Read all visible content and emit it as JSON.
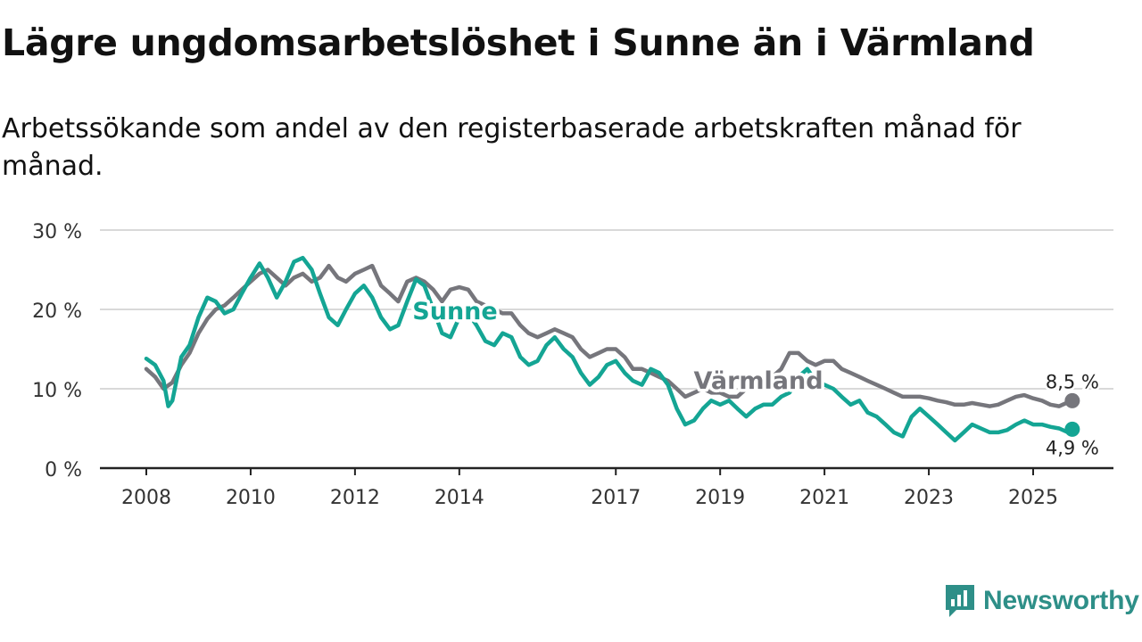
{
  "title": "Lägre ungdomsarbetslöshet i Sunne än i Värmland",
  "subtitle": "Arbetssökande som andel av den registerbaserade arbetskraften månad för månad.",
  "brand": "Newsworthy",
  "colors": {
    "sunne": "#14a594",
    "varmland": "#76767c",
    "grid": "#d9d9d9",
    "axis": "#222222",
    "brand": "#2e8f88"
  },
  "chart_data": {
    "type": "line",
    "x_unit": "year (decimal, monthly data)",
    "ylim": [
      0,
      30
    ],
    "xlim": [
      2007.8,
      2026.5
    ],
    "yticks": [
      {
        "value": 0,
        "label": "0 %"
      },
      {
        "value": 10,
        "label": "10 %"
      },
      {
        "value": 20,
        "label": "20 %"
      },
      {
        "value": 30,
        "label": "30 %"
      }
    ],
    "xticks": [
      {
        "value": 2008,
        "label": "2008"
      },
      {
        "value": 2010,
        "label": "2010"
      },
      {
        "value": 2012,
        "label": "2012"
      },
      {
        "value": 2014,
        "label": "2014"
      },
      {
        "value": 2017,
        "label": "2017"
      },
      {
        "value": 2019,
        "label": "2019"
      },
      {
        "value": 2021,
        "label": "2021"
      },
      {
        "value": 2023,
        "label": "2023"
      },
      {
        "value": 2025,
        "label": "2025"
      }
    ],
    "grid": true,
    "series": [
      {
        "name": "Värmland",
        "label": "Värmland",
        "end_label": "8,5 %",
        "color": "#76767c",
        "points": [
          [
            2008.0,
            12.5
          ],
          [
            2008.17,
            11.5
          ],
          [
            2008.33,
            10.0
          ],
          [
            2008.5,
            10.8
          ],
          [
            2008.67,
            13.0
          ],
          [
            2008.83,
            14.5
          ],
          [
            2009.0,
            17.0
          ],
          [
            2009.17,
            18.8
          ],
          [
            2009.33,
            20.0
          ],
          [
            2009.5,
            20.5
          ],
          [
            2009.67,
            21.5
          ],
          [
            2009.83,
            22.5
          ],
          [
            2010.0,
            23.5
          ],
          [
            2010.17,
            24.5
          ],
          [
            2010.33,
            25.0
          ],
          [
            2010.5,
            24.0
          ],
          [
            2010.67,
            23.0
          ],
          [
            2010.83,
            24.0
          ],
          [
            2011.0,
            24.5
          ],
          [
            2011.17,
            23.5
          ],
          [
            2011.33,
            24.0
          ],
          [
            2011.5,
            25.5
          ],
          [
            2011.67,
            24.0
          ],
          [
            2011.83,
            23.5
          ],
          [
            2012.0,
            24.5
          ],
          [
            2012.17,
            25.0
          ],
          [
            2012.33,
            25.5
          ],
          [
            2012.5,
            23.0
          ],
          [
            2012.67,
            22.0
          ],
          [
            2012.83,
            21.0
          ],
          [
            2013.0,
            23.5
          ],
          [
            2013.17,
            24.0
          ],
          [
            2013.33,
            23.5
          ],
          [
            2013.5,
            22.5
          ],
          [
            2013.67,
            21.0
          ],
          [
            2013.83,
            22.5
          ],
          [
            2014.0,
            22.8
          ],
          [
            2014.17,
            22.5
          ],
          [
            2014.33,
            21.0
          ],
          [
            2014.5,
            20.5
          ],
          [
            2014.67,
            20.0
          ],
          [
            2014.83,
            19.5
          ],
          [
            2015.0,
            19.5
          ],
          [
            2015.17,
            18.0
          ],
          [
            2015.33,
            17.0
          ],
          [
            2015.5,
            16.5
          ],
          [
            2015.67,
            17.0
          ],
          [
            2015.83,
            17.5
          ],
          [
            2016.0,
            17.0
          ],
          [
            2016.17,
            16.5
          ],
          [
            2016.33,
            15.0
          ],
          [
            2016.5,
            14.0
          ],
          [
            2016.67,
            14.5
          ],
          [
            2016.83,
            15.0
          ],
          [
            2017.0,
            15.0
          ],
          [
            2017.17,
            14.0
          ],
          [
            2017.33,
            12.5
          ],
          [
            2017.5,
            12.5
          ],
          [
            2017.67,
            12.0
          ],
          [
            2017.83,
            11.5
          ],
          [
            2018.0,
            11.0
          ],
          [
            2018.17,
            10.0
          ],
          [
            2018.33,
            9.0
          ],
          [
            2018.5,
            9.5
          ],
          [
            2018.67,
            10.0
          ],
          [
            2018.83,
            9.5
          ],
          [
            2019.0,
            9.5
          ],
          [
            2019.17,
            9.0
          ],
          [
            2019.33,
            9.0
          ],
          [
            2019.5,
            10.0
          ],
          [
            2019.67,
            10.5
          ],
          [
            2019.83,
            11.0
          ],
          [
            2020.0,
            11.5
          ],
          [
            2020.17,
            12.5
          ],
          [
            2020.33,
            14.5
          ],
          [
            2020.5,
            14.5
          ],
          [
            2020.67,
            13.5
          ],
          [
            2020.83,
            13.0
          ],
          [
            2021.0,
            13.5
          ],
          [
            2021.17,
            13.5
          ],
          [
            2021.33,
            12.5
          ],
          [
            2021.5,
            12.0
          ],
          [
            2021.67,
            11.5
          ],
          [
            2021.83,
            11.0
          ],
          [
            2022.0,
            10.5
          ],
          [
            2022.17,
            10.0
          ],
          [
            2022.33,
            9.5
          ],
          [
            2022.5,
            9.0
          ],
          [
            2022.67,
            9.0
          ],
          [
            2022.83,
            9.0
          ],
          [
            2023.0,
            8.8
          ],
          [
            2023.17,
            8.5
          ],
          [
            2023.33,
            8.3
          ],
          [
            2023.5,
            8.0
          ],
          [
            2023.67,
            8.0
          ],
          [
            2023.83,
            8.2
          ],
          [
            2024.0,
            8.0
          ],
          [
            2024.17,
            7.8
          ],
          [
            2024.33,
            8.0
          ],
          [
            2024.5,
            8.5
          ],
          [
            2024.67,
            9.0
          ],
          [
            2024.83,
            9.2
          ],
          [
            2025.0,
            8.8
          ],
          [
            2025.17,
            8.5
          ],
          [
            2025.33,
            8.0
          ],
          [
            2025.5,
            7.8
          ],
          [
            2025.67,
            8.3
          ],
          [
            2025.75,
            8.5
          ]
        ]
      },
      {
        "name": "Sunne",
        "label": "Sunne",
        "end_label": "4,9 %",
        "color": "#14a594",
        "points": [
          [
            2008.0,
            13.8
          ],
          [
            2008.17,
            13.0
          ],
          [
            2008.33,
            11.0
          ],
          [
            2008.42,
            7.8
          ],
          [
            2008.5,
            8.5
          ],
          [
            2008.67,
            14.0
          ],
          [
            2008.83,
            15.5
          ],
          [
            2009.0,
            19.0
          ],
          [
            2009.17,
            21.5
          ],
          [
            2009.33,
            21.0
          ],
          [
            2009.5,
            19.5
          ],
          [
            2009.67,
            20.0
          ],
          [
            2009.83,
            22.0
          ],
          [
            2010.0,
            24.0
          ],
          [
            2010.17,
            25.8
          ],
          [
            2010.33,
            24.0
          ],
          [
            2010.5,
            21.5
          ],
          [
            2010.67,
            23.5
          ],
          [
            2010.83,
            26.0
          ],
          [
            2011.0,
            26.5
          ],
          [
            2011.17,
            25.0
          ],
          [
            2011.33,
            22.0
          ],
          [
            2011.5,
            19.0
          ],
          [
            2011.67,
            18.0
          ],
          [
            2011.83,
            20.0
          ],
          [
            2012.0,
            22.0
          ],
          [
            2012.17,
            23.0
          ],
          [
            2012.33,
            21.5
          ],
          [
            2012.5,
            19.0
          ],
          [
            2012.67,
            17.5
          ],
          [
            2012.83,
            18.0
          ],
          [
            2013.0,
            21.0
          ],
          [
            2013.17,
            23.8
          ],
          [
            2013.33,
            23.0
          ],
          [
            2013.5,
            20.0
          ],
          [
            2013.67,
            17.0
          ],
          [
            2013.83,
            16.5
          ],
          [
            2014.0,
            19.0
          ],
          [
            2014.17,
            19.5
          ],
          [
            2014.33,
            18.0
          ],
          [
            2014.5,
            16.0
          ],
          [
            2014.67,
            15.5
          ],
          [
            2014.83,
            17.0
          ],
          [
            2015.0,
            16.5
          ],
          [
            2015.17,
            14.0
          ],
          [
            2015.33,
            13.0
          ],
          [
            2015.5,
            13.5
          ],
          [
            2015.67,
            15.5
          ],
          [
            2015.83,
            16.5
          ],
          [
            2016.0,
            15.0
          ],
          [
            2016.17,
            14.0
          ],
          [
            2016.33,
            12.0
          ],
          [
            2016.5,
            10.5
          ],
          [
            2016.67,
            11.5
          ],
          [
            2016.83,
            13.0
          ],
          [
            2017.0,
            13.5
          ],
          [
            2017.17,
            12.0
          ],
          [
            2017.33,
            11.0
          ],
          [
            2017.5,
            10.5
          ],
          [
            2017.67,
            12.5
          ],
          [
            2017.83,
            12.0
          ],
          [
            2018.0,
            10.5
          ],
          [
            2018.17,
            7.5
          ],
          [
            2018.33,
            5.5
          ],
          [
            2018.5,
            6.0
          ],
          [
            2018.67,
            7.5
          ],
          [
            2018.83,
            8.5
          ],
          [
            2019.0,
            8.0
          ],
          [
            2019.17,
            8.5
          ],
          [
            2019.33,
            7.5
          ],
          [
            2019.5,
            6.5
          ],
          [
            2019.67,
            7.5
          ],
          [
            2019.83,
            8.0
          ],
          [
            2020.0,
            8.0
          ],
          [
            2020.17,
            9.0
          ],
          [
            2020.33,
            9.5
          ],
          [
            2020.5,
            11.5
          ],
          [
            2020.67,
            12.5
          ],
          [
            2020.83,
            11.0
          ],
          [
            2021.0,
            10.5
          ],
          [
            2021.17,
            10.0
          ],
          [
            2021.33,
            9.0
          ],
          [
            2021.5,
            8.0
          ],
          [
            2021.67,
            8.5
          ],
          [
            2021.83,
            7.0
          ],
          [
            2022.0,
            6.5
          ],
          [
            2022.17,
            5.5
          ],
          [
            2022.33,
            4.5
          ],
          [
            2022.5,
            4.0
          ],
          [
            2022.67,
            6.5
          ],
          [
            2022.83,
            7.5
          ],
          [
            2023.0,
            6.5
          ],
          [
            2023.17,
            5.5
          ],
          [
            2023.33,
            4.5
          ],
          [
            2023.5,
            3.5
          ],
          [
            2023.67,
            4.5
          ],
          [
            2023.83,
            5.5
          ],
          [
            2024.0,
            5.0
          ],
          [
            2024.17,
            4.5
          ],
          [
            2024.33,
            4.5
          ],
          [
            2024.5,
            4.8
          ],
          [
            2024.67,
            5.5
          ],
          [
            2024.83,
            6.0
          ],
          [
            2025.0,
            5.5
          ],
          [
            2025.17,
            5.5
          ],
          [
            2025.33,
            5.2
          ],
          [
            2025.5,
            5.0
          ],
          [
            2025.67,
            4.5
          ],
          [
            2025.75,
            4.9
          ]
        ]
      }
    ]
  }
}
